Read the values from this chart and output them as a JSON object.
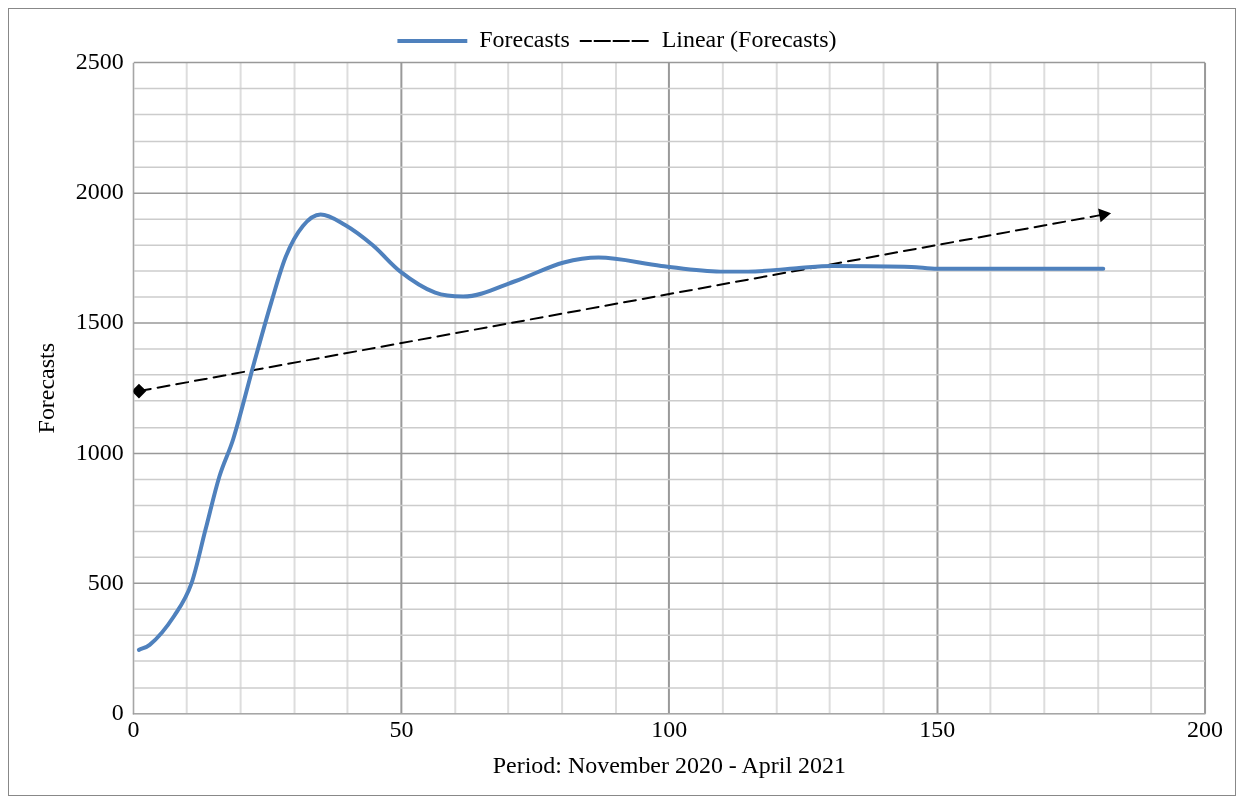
{
  "chart_data": {
    "type": "line",
    "xlabel": "Period: November 2020 - April 2021",
    "ylabel": "Forecasts",
    "legend": "top",
    "grid": true,
    "xlim": [
      0,
      200
    ],
    "xticks": [
      0,
      {
        "value": 10,
        "label": null
      },
      {
        "value": 20,
        "label": null
      },
      {
        "value": 30,
        "label": null
      },
      {
        "value": 40,
        "label": null
      },
      50,
      {
        "value": 60,
        "label": null
      },
      {
        "value": 70,
        "label": null
      },
      {
        "value": 80,
        "label": null
      },
      {
        "value": 90,
        "label": null
      },
      100,
      {
        "value": 110,
        "label": null
      },
      {
        "value": 120,
        "label": null
      },
      {
        "value": 130,
        "label": null
      },
      {
        "value": 140,
        "label": null
      },
      150,
      {
        "value": 160,
        "label": null
      },
      {
        "value": 170,
        "label": null
      },
      {
        "value": 180,
        "label": null
      },
      {
        "value": 190,
        "label": null
      },
      200
    ],
    "ylim": [
      0,
      2500
    ],
    "yticks": [
      0,
      {
        "value": 100,
        "label": null
      },
      {
        "value": 200,
        "label": null
      },
      {
        "value": 300,
        "label": null
      },
      {
        "value": 400,
        "label": null
      },
      500,
      {
        "value": 600,
        "label": null
      },
      {
        "value": 700,
        "label": null
      },
      {
        "value": 800,
        "label": null
      },
      {
        "value": 900,
        "label": null
      },
      1000,
      {
        "value": 1100,
        "label": null
      },
      {
        "value": 1200,
        "label": null
      },
      {
        "value": 1300,
        "label": null
      },
      {
        "value": 1400,
        "label": null
      },
      1500,
      {
        "value": 1600,
        "label": null
      },
      {
        "value": 1700,
        "label": null
      },
      {
        "value": 1800,
        "label": null
      },
      {
        "value": 1900,
        "label": null
      },
      2000,
      {
        "value": 2100,
        "label": null
      },
      {
        "value": 2200,
        "label": null
      },
      {
        "value": 2300,
        "label": null
      },
      {
        "value": 2400,
        "label": null
      },
      2500
    ],
    "series": [
      {
        "name": "Forecasts",
        "color": "#4f81bd",
        "marker": "none",
        "line_style": "solid",
        "x": [
          1,
          3,
          7.6,
          10.8,
          13.4,
          16,
          18.6,
          22.5,
          25.7,
          28.4,
          31.6,
          34.9,
          39.4,
          44.6,
          49.8,
          56.3,
          61.5,
          71.2,
          80.3,
          86.8,
          98.5,
          109.5,
          114.7,
          123.8,
          130.3,
          145.2,
          150,
          165,
          181
        ],
        "values": [
          245,
          264,
          376,
          500,
          705,
          910,
          1055,
          1348,
          1580,
          1755,
          1873,
          1917,
          1878,
          1800,
          1698,
          1617,
          1602,
          1661,
          1733,
          1752,
          1720,
          1698,
          1698,
          1711,
          1720,
          1716,
          1709,
          1709,
          1709
        ]
      },
      {
        "name": "Linear (Forecasts)",
        "color": "#000000",
        "marker": "diamond",
        "line_style": "dashed",
        "x": [
          1,
          181
        ],
        "values": [
          1239,
          1917
        ]
      }
    ]
  }
}
